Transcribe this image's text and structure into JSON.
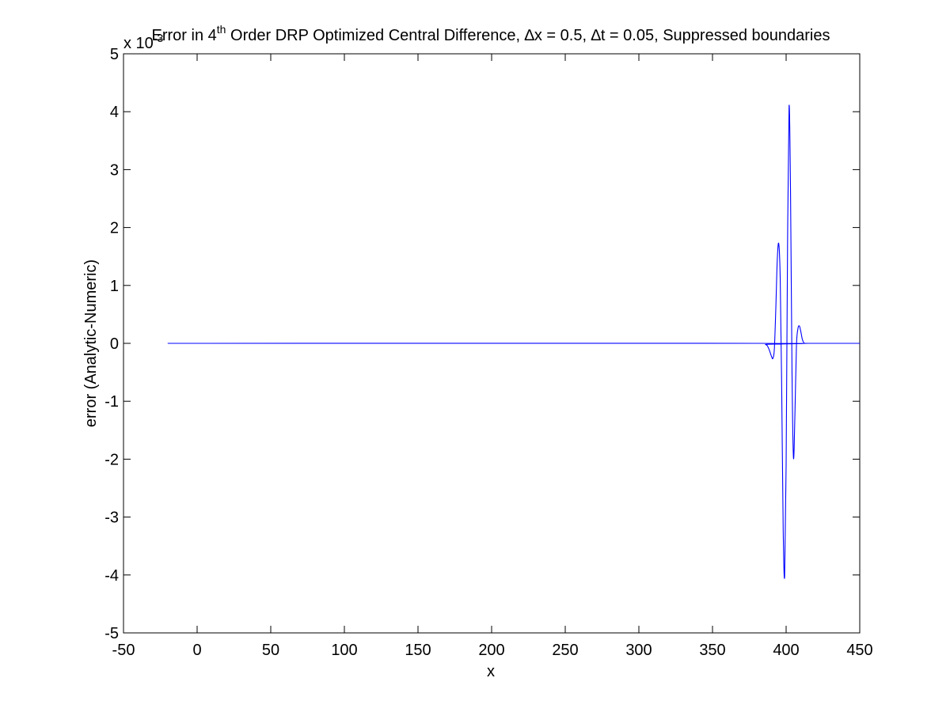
{
  "chart_data": {
    "type": "line",
    "title": {
      "prefix": "Error in 4",
      "superscript": "th",
      "suffix": " Order DRP Optimized Central Difference, ∆x = 0.5, ∆t = 0.05, Suppressed boundaries"
    },
    "xlabel": "x",
    "ylabel": "error (Analytic-Numeric)",
    "y_exponent": {
      "base": "x 10",
      "power": "-3"
    },
    "xlim": [
      -50,
      450
    ],
    "ylim": [
      -5,
      5
    ],
    "xticks": [
      "-50",
      "0",
      "50",
      "100",
      "150",
      "200",
      "250",
      "300",
      "350",
      "400",
      "450"
    ],
    "yticks": [
      "5",
      "4",
      "3",
      "2",
      "1",
      "0",
      "-1",
      "-2",
      "-3",
      "-4",
      "-5"
    ],
    "xtick_values": [
      -50,
      0,
      50,
      100,
      150,
      200,
      250,
      300,
      350,
      400,
      450
    ],
    "ytick_values": [
      5,
      4,
      3,
      2,
      1,
      0,
      -1,
      -2,
      -3,
      -4,
      -5
    ],
    "grid": false,
    "line_color": "#0000ff",
    "series": [
      {
        "x": [
          -20,
          380,
          386,
          388,
          390,
          391,
          392,
          393,
          394,
          395,
          396,
          397,
          398,
          399,
          400,
          401,
          402,
          403,
          404,
          405,
          406,
          407,
          408,
          409,
          410,
          411,
          412,
          413,
          415,
          450
        ],
        "y": [
          0,
          0,
          -0.02,
          -0.08,
          -0.22,
          -0.26,
          -0.1,
          0.6,
          1.45,
          1.72,
          1.1,
          -0.8,
          -3.2,
          -4.02,
          -2.1,
          1.8,
          4.1,
          2.6,
          -0.5,
          -1.98,
          -1.2,
          -0.05,
          0.25,
          0.3,
          0.2,
          0.07,
          0.01,
          0,
          0,
          0
        ]
      }
    ]
  }
}
